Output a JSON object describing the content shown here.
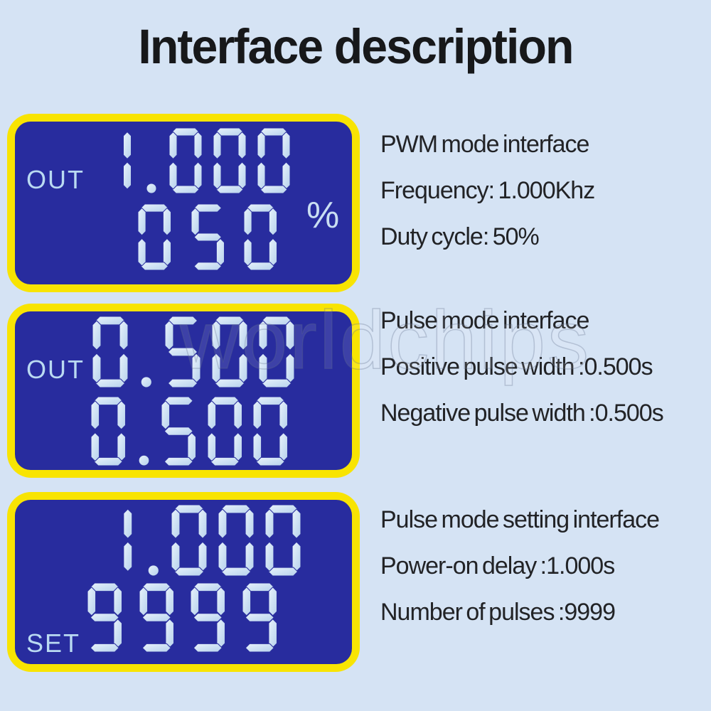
{
  "title": "Interface description",
  "watermark": "worldchips",
  "colors": {
    "background": "#d5e3f4",
    "panel_border_yellow": "#f8e402",
    "lcd_blue": "#282c9e",
    "segment_light_blue": "#cfe2f4",
    "lcd_label_blue": "#badaf2",
    "text_dark": "#222326"
  },
  "panels": [
    {
      "mode_label": "OUT",
      "display": {
        "row1": "1.000",
        "row2": "050",
        "unit": "%"
      },
      "description": {
        "title": "PWM mode interface",
        "lines": [
          "Frequency: 1.000Khz",
          "Duty cycle: 50%"
        ]
      }
    },
    {
      "mode_label": "OUT",
      "display": {
        "row1": "0.500",
        "row2": "0.500"
      },
      "description": {
        "title": "Pulse mode interface",
        "lines": [
          "Positive pulse width :0.500s",
          "Negative pulse width :0.500s"
        ]
      }
    },
    {
      "mode_label": "SET",
      "display": {
        "row1": "1.000",
        "row2": "9999"
      },
      "description": {
        "title": "Pulse mode setting interface",
        "lines": [
          "Power-on delay :1.000s",
          "Number of pulses :9999"
        ]
      }
    }
  ]
}
